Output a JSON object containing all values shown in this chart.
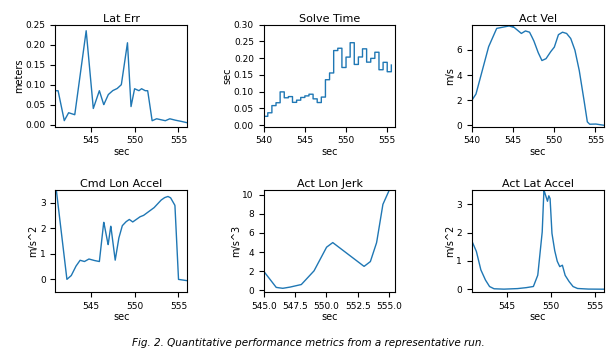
{
  "title": "Fig. 2. Quantitative performance metrics from a representative run.",
  "line_color": "#1f77b4",
  "line_width": 1.0,
  "fig_width": 6.16,
  "fig_height": 3.52,
  "dpi": 100,
  "subplots": [
    {
      "title": "Lat Err",
      "ylabel": "meters",
      "xlabel": "sec",
      "xlim": [
        541.0,
        556.0
      ],
      "ylim": [
        -0.005,
        0.25
      ],
      "xticks": [
        545,
        550,
        555
      ],
      "yticks": [
        0.0,
        0.05,
        0.1,
        0.15,
        0.2,
        0.25
      ]
    },
    {
      "title": "Solve Time",
      "ylabel": "sec",
      "xlabel": "sec",
      "xlim": [
        540.0,
        556.0
      ],
      "ylim": [
        -0.005,
        0.3
      ],
      "xticks": [
        540,
        545,
        550,
        555
      ],
      "yticks": [
        0.0,
        0.05,
        0.1,
        0.15,
        0.2,
        0.25,
        0.3
      ]
    },
    {
      "title": "Act Vel",
      "ylabel": "m/s",
      "xlabel": "sec",
      "xlim": [
        540.0,
        556.0
      ],
      "ylim": [
        -0.1,
        8.0
      ],
      "xticks": [
        540,
        545,
        550,
        555
      ],
      "yticks": [
        0,
        2,
        4,
        6
      ]
    },
    {
      "title": "Cmd Lon Accel",
      "ylabel": "m/s^2",
      "xlabel": "sec",
      "xlim": [
        541.0,
        556.0
      ],
      "ylim": [
        -0.5,
        3.5
      ],
      "xticks": [
        545,
        550,
        555
      ],
      "yticks": [
        -0.0,
        1.0,
        2.0,
        3.0
      ]
    },
    {
      "title": "Act Lon Jerk",
      "ylabel": "m/s^3",
      "xlabel": "sec",
      "xlim": [
        545.0,
        555.5
      ],
      "ylim": [
        -0.2,
        10.5
      ],
      "xticks": [
        545.0,
        547.5,
        550.0,
        552.5,
        555.0
      ],
      "yticks": [
        0.0,
        2.0,
        4.0,
        6.0,
        8.0,
        10.0
      ]
    },
    {
      "title": "Act Lat Accel",
      "ylabel": "m/s^2",
      "xlabel": "sec",
      "xlim": [
        541.0,
        556.0
      ],
      "ylim": [
        -0.1,
        3.5
      ],
      "xticks": [
        545,
        550,
        555
      ],
      "yticks": [
        0.0,
        1.0,
        2.0,
        3.0
      ]
    }
  ]
}
